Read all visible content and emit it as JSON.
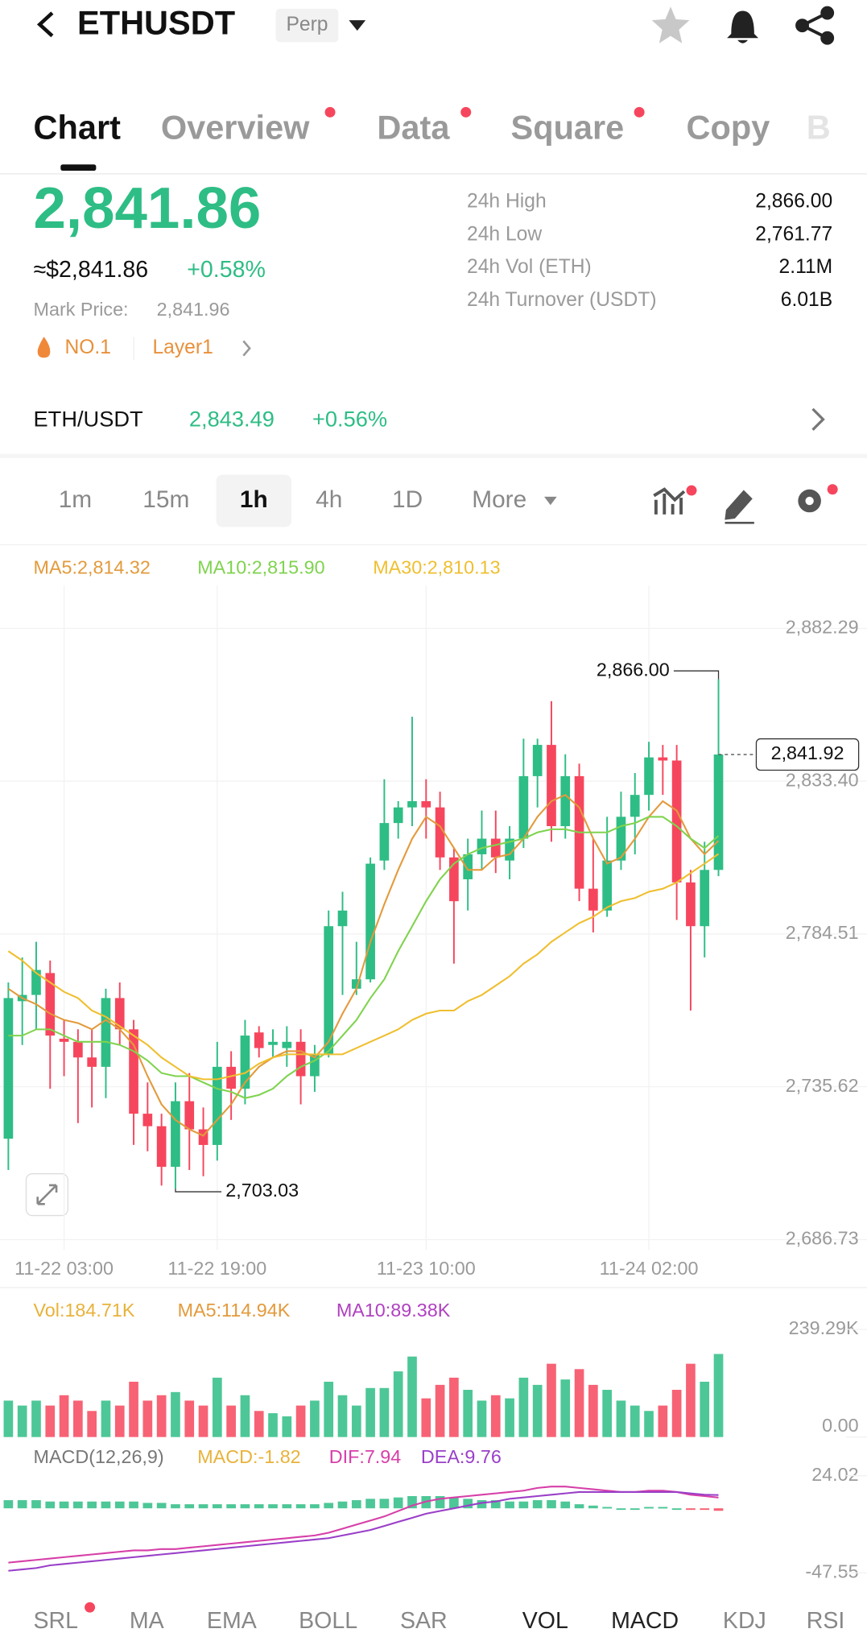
{
  "header": {
    "title": "ETHUSDT",
    "badge": "Perp"
  },
  "tabs": [
    "Chart",
    "Overview",
    "Data",
    "Square",
    "Copy",
    "B"
  ],
  "price": {
    "last": "2,841.86",
    "usd": "≈$2,841.86",
    "change": "+0.58%",
    "mark_label": "Mark Price:",
    "mark": "2,841.96",
    "rank": "NO.1",
    "sector": "Layer1"
  },
  "stats": [
    {
      "label": "24h High",
      "value": "2,866.00"
    },
    {
      "label": "24h Low",
      "value": "2,761.77"
    },
    {
      "label": "24h Vol (ETH)",
      "value": "2.11M"
    },
    {
      "label": "24h Turnover (USDT)",
      "value": "6.01B"
    }
  ],
  "pair": {
    "name": "ETH/USDT",
    "price": "2,843.49",
    "change": "+0.56%"
  },
  "intervals": [
    "1m",
    "15m",
    "1h",
    "4h",
    "1D",
    "More"
  ],
  "indicators": [
    "SRL",
    "MA",
    "EMA",
    "BOLL",
    "SAR",
    "VOL",
    "MACD",
    "KDJ",
    "RSI"
  ],
  "chart_data": [
    {
      "type": "candlestick",
      "categories": [
        null,
        null,
        null,
        null,
        "11-22 03:00",
        null,
        null,
        null,
        null,
        null,
        null,
        null,
        null,
        null,
        null,
        "11-22 19:00",
        null,
        null,
        null,
        null,
        null,
        null,
        null,
        null,
        null,
        null,
        null,
        null,
        null,
        null,
        "11-23 10:00",
        null,
        null,
        null,
        null,
        null,
        null,
        null,
        null,
        null,
        null,
        null,
        null,
        null,
        null,
        null,
        "11-24 02:00",
        null,
        null,
        null,
        null,
        null
      ],
      "open": [
        2719,
        2763,
        2765,
        2772,
        2751,
        2750,
        2745,
        2742,
        2764,
        2754,
        2727,
        2723,
        2710,
        2731,
        2722,
        2717,
        2742,
        2735,
        2753,
        2749,
        2748,
        2750,
        2739,
        2746,
        2787,
        2767,
        2770,
        2808,
        2820,
        2825,
        2827,
        2825,
        2809,
        2802,
        2810,
        2815,
        2808,
        2815,
        2835,
        2845,
        2819,
        2835,
        2799,
        2792,
        2808,
        2822,
        2829,
        2841,
        2840,
        2801,
        2787,
        2805
      ],
      "high": [
        2769,
        2777,
        2782,
        2776,
        2757,
        2754,
        2754,
        2767,
        2769,
        2757,
        2737,
        2727,
        2737,
        2740,
        2729,
        2750,
        2747,
        2757,
        2755,
        2754,
        2755,
        2754,
        2749,
        2792,
        2798,
        2782,
        2809,
        2834,
        2827,
        2854,
        2834,
        2830,
        2812,
        2815,
        2824,
        2824,
        2819,
        2847,
        2847,
        2859,
        2842,
        2839,
        2815,
        2822,
        2830,
        2836,
        2846,
        2845,
        2845,
        2805,
        2814,
        2866.0
      ],
      "low": [
        2709,
        2749,
        2754,
        2735,
        2739,
        2724,
        2729,
        2732,
        2749,
        2717,
        2715,
        2704,
        2703.03,
        2709,
        2707,
        2712,
        2725,
        2730,
        2745,
        2745,
        2742,
        2730,
        2734,
        2745,
        2765,
        2765,
        2769,
        2805,
        2815,
        2819,
        2815,
        2805,
        2775,
        2792,
        2805,
        2804,
        2802,
        2812,
        2825,
        2814,
        2815,
        2795,
        2785,
        2790,
        2805,
        2810,
        2824,
        2829,
        2789,
        2760,
        2777,
        2803
      ],
      "close": [
        2764,
        2765,
        2773,
        2752,
        2750,
        2745,
        2742,
        2764,
        2754,
        2727,
        2723,
        2710,
        2731,
        2722,
        2717,
        2742,
        2735,
        2752,
        2748,
        2750,
        2750,
        2739,
        2746,
        2787,
        2792,
        2770,
        2807,
        2820,
        2825,
        2827,
        2825,
        2809,
        2795,
        2810,
        2815,
        2809,
        2815,
        2835,
        2845,
        2819,
        2835,
        2799,
        2792,
        2808,
        2822,
        2829,
        2841,
        2840,
        2801,
        2787,
        2805,
        2841.92
      ],
      "up_color": "#2ebd85",
      "down_color": "#f6465d",
      "series": [
        {
          "name": "MA5:2,814.32",
          "color": "#e39a3b",
          "values": [
            2767,
            2764,
            2762,
            2759,
            2757,
            2756,
            2754,
            2757,
            2754,
            2749,
            2739,
            2730,
            2725,
            2722,
            2720,
            2725,
            2730,
            2737,
            2742,
            2745,
            2747,
            2747,
            2745,
            2750,
            2759,
            2767,
            2782,
            2794,
            2805,
            2815,
            2822,
            2819,
            2812,
            2805,
            2805,
            2809,
            2810,
            2815,
            2822,
            2827,
            2829,
            2825,
            2815,
            2807,
            2809,
            2815,
            2822,
            2827,
            2824,
            2815,
            2810,
            2814.32
          ]
        },
        {
          "name": "MA10:2,815.90",
          "color": "#7fd34e",
          "values": [
            2752,
            2752,
            2754,
            2754,
            2752,
            2750,
            2750,
            2750,
            2749,
            2747,
            2744,
            2740,
            2739,
            2739,
            2737,
            2735,
            2734,
            2732,
            2733,
            2735,
            2739,
            2742,
            2744,
            2747,
            2752,
            2757,
            2764,
            2770,
            2779,
            2787,
            2795,
            2802,
            2807,
            2810,
            2812,
            2813,
            2814,
            2815,
            2817,
            2818,
            2818,
            2817,
            2817,
            2817,
            2819,
            2820,
            2822,
            2822,
            2819,
            2815,
            2812,
            2815.9
          ]
        },
        {
          "name": "MA30:2,810.13",
          "color": "#efbf2f",
          "values": [
            2779,
            2776,
            2772,
            2769,
            2766,
            2764,
            2760,
            2758,
            2755,
            2752,
            2749,
            2745,
            2742,
            2739,
            2738,
            2738,
            2739,
            2740,
            2743,
            2745,
            2746,
            2746,
            2746,
            2746,
            2746,
            2748,
            2750,
            2752,
            2754,
            2757,
            2759,
            2760,
            2760,
            2763,
            2765,
            2768,
            2771,
            2775,
            2778,
            2782,
            2785,
            2788,
            2790,
            2793,
            2795,
            2796,
            2798,
            2799,
            2801,
            2804,
            2807,
            2810.13
          ]
        }
      ],
      "ylim": [
        2686.73,
        2882.29
      ],
      "yticks": [
        {
          "value": 2882.29,
          "label": "2,882.29"
        },
        {
          "value": 2833.4,
          "label": "2,833.40"
        },
        {
          "value": 2784.51,
          "label": "2,784.51"
        },
        {
          "value": 2735.62,
          "label": "2,735.62"
        },
        {
          "value": 2686.73,
          "label": "2,686.73"
        }
      ],
      "grid": true,
      "annotations": [
        {
          "value": 2866.0,
          "label": "2,866.00"
        },
        {
          "value": 2703.03,
          "label": "2,703.03"
        }
      ],
      "last_price": {
        "value": 2841.92,
        "label": "2,841.92"
      }
    },
    {
      "type": "bar",
      "legend": [
        {
          "text": "Vol:184.71K",
          "color": "#e8b23a"
        },
        {
          "text": "MA5:114.94K",
          "color": "#e39a3b"
        },
        {
          "text": "MA10:89.38K",
          "color": "#b040c0"
        }
      ],
      "values": [
        81,
        70,
        81,
        70,
        93,
        81,
        58,
        81,
        70,
        123,
        81,
        93,
        100,
        81,
        70,
        132,
        70,
        93,
        58,
        53,
        46,
        70,
        81,
        123,
        93,
        70,
        109,
        109,
        146,
        179,
        86,
        116,
        132,
        105,
        81,
        93,
        86,
        132,
        116,
        163,
        128,
        151,
        116,
        105,
        81,
        70,
        58,
        70,
        105,
        163,
        123,
        184.71
      ],
      "ylim": [
        0,
        239.29
      ],
      "yticks": [
        {
          "value": 239.29,
          "label": "239.29K"
        },
        {
          "value": 0,
          "label": "0.00"
        }
      ]
    },
    {
      "type": "macd",
      "legend": [
        {
          "text": "MACD(12,26,9)",
          "color": "#777777"
        },
        {
          "text": "MACD:-1.82",
          "color": "#e8b23a"
        },
        {
          "text": "DIF:7.94",
          "color": "#d63fa8"
        },
        {
          "text": "DEA:9.76",
          "color": "#9a3fc8"
        }
      ],
      "values": [
        6,
        6,
        6,
        5,
        5,
        5,
        5,
        5,
        5,
        5,
        4,
        4,
        3,
        3,
        3,
        3,
        3,
        3,
        3,
        3,
        3,
        3,
        3,
        4,
        5,
        6,
        7,
        7,
        8,
        9,
        9,
        9,
        8,
        7,
        6,
        6,
        5,
        5,
        6,
        6,
        5,
        3,
        2,
        1,
        0,
        0,
        1,
        1,
        0,
        -1,
        -1,
        -1.82
      ],
      "series": [
        {
          "name": "DIF",
          "color": "#d63fa8",
          "values": [
            -40,
            -39,
            -38,
            -37,
            -36,
            -35,
            -34,
            -33,
            -32,
            -31,
            -31,
            -30,
            -30,
            -29,
            -28,
            -27,
            -26,
            -25,
            -24,
            -23,
            -22,
            -21,
            -20,
            -18,
            -15,
            -12,
            -9,
            -6,
            -2,
            2,
            5,
            7,
            8,
            9,
            10,
            11,
            12,
            13,
            15,
            16,
            16,
            15,
            14,
            13,
            12,
            12,
            13,
            13,
            12,
            10,
            9,
            7.94
          ]
        },
        {
          "name": "DEA",
          "color": "#9a3fc8",
          "values": [
            -46,
            -45,
            -44,
            -42,
            -41,
            -40,
            -39,
            -38,
            -37,
            -36,
            -35,
            -34,
            -33,
            -32,
            -31,
            -30,
            -29,
            -28,
            -27,
            -26,
            -25,
            -24,
            -23,
            -22,
            -20,
            -18,
            -16,
            -13,
            -10,
            -7,
            -4,
            -2,
            0,
            2,
            4,
            5,
            7,
            8,
            9,
            10,
            11,
            12,
            12,
            12,
            12,
            12,
            12,
            12,
            12,
            11,
            10,
            9.76
          ]
        }
      ],
      "ylim": [
        -47.55,
        24.02
      ],
      "yticks": [
        24.02,
        -47.55
      ]
    }
  ]
}
